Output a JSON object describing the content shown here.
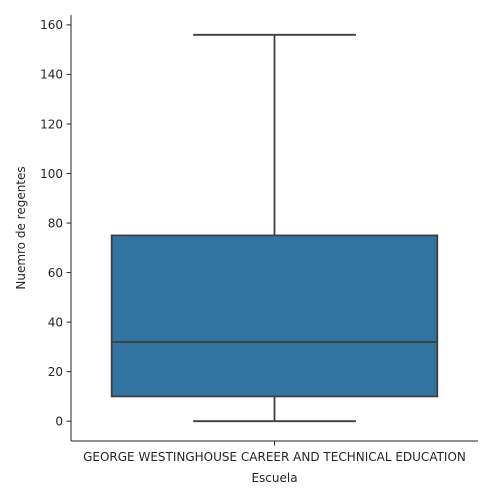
{
  "chart_data": {
    "type": "box",
    "xlabel": "Escuela",
    "ylabel": "Nuemro de regentes",
    "categories": [
      "GEORGE WESTINGHOUSE CAREER AND TECHNICAL EDUCATION"
    ],
    "boxes": [
      {
        "category": "GEORGE WESTINGHOUSE CAREER AND TECHNICAL EDUCATION",
        "min": 0,
        "q1": 10,
        "median": 32,
        "q3": 75,
        "max": 156
      }
    ],
    "ylim": [
      -8,
      164
    ],
    "yticks": [
      0,
      20,
      40,
      60,
      80,
      100,
      120,
      140,
      160
    ],
    "grid": false,
    "colors": {
      "box": "#3274a1",
      "line": "#3f3f3f",
      "axis": "#262626"
    }
  }
}
